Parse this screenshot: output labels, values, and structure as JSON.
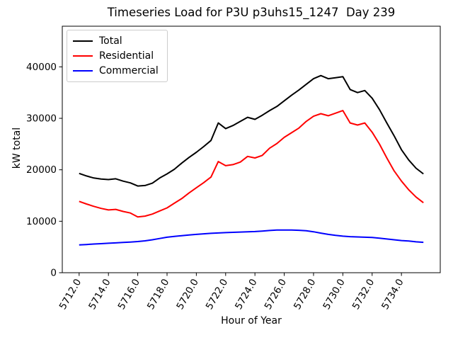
{
  "chart_data": {
    "type": "line",
    "title": "Timeseries Load for P3U p3uhs15_1247  Day 239",
    "xlabel": "Hour of Year",
    "ylabel": "kW total",
    "grid": false,
    "legend": {
      "position": "upper left"
    },
    "xlim": [
      5710.85,
      5736.65
    ],
    "ylim": [
      0,
      47900
    ],
    "xticks": {
      "values": [
        5712,
        5714,
        5716,
        5718,
        5720,
        5722,
        5724,
        5726,
        5728,
        5730,
        5732,
        5734
      ],
      "labels": [
        "5712.0",
        "5714.0",
        "5716.0",
        "5718.0",
        "5720.0",
        "5722.0",
        "5724.0",
        "5726.0",
        "5728.0",
        "5730.0",
        "5732.0",
        "5734.0"
      ],
      "rotation_deg": 60
    },
    "yticks": {
      "values": [
        0,
        10000,
        20000,
        30000,
        40000
      ],
      "labels": [
        "0",
        "10000",
        "20000",
        "30000",
        "40000"
      ]
    },
    "x": [
      5712.0,
      5712.5,
      5713.0,
      5713.5,
      5714.0,
      5714.5,
      5715.0,
      5715.5,
      5716.0,
      5716.5,
      5717.0,
      5717.5,
      5718.0,
      5718.5,
      5719.0,
      5719.5,
      5720.0,
      5720.5,
      5721.0,
      5721.5,
      5722.0,
      5722.5,
      5723.0,
      5723.5,
      5724.0,
      5724.5,
      5725.0,
      5725.5,
      5726.0,
      5726.5,
      5727.0,
      5727.5,
      5728.0,
      5728.5,
      5729.0,
      5729.5,
      5730.0,
      5730.5,
      5731.0,
      5731.5,
      5732.0,
      5732.5,
      5733.0,
      5733.5,
      5734.0,
      5734.5,
      5735.0,
      5735.5
    ],
    "series": [
      {
        "name": "Total",
        "color": "#000000",
        "values": [
          19300,
          18800,
          18400,
          18200,
          18100,
          18250,
          17800,
          17450,
          16850,
          16950,
          17400,
          18400,
          19200,
          20100,
          21300,
          22400,
          23400,
          24500,
          25700,
          29100,
          28000,
          28600,
          29400,
          30200,
          29800,
          30600,
          31500,
          32300,
          33400,
          34500,
          35500,
          36600,
          37700,
          38300,
          37700,
          37900,
          38100,
          35600,
          35000,
          35400,
          33900,
          31700,
          29100,
          26600,
          23900,
          21900,
          20300,
          19200
        ]
      },
      {
        "name": "Residential",
        "color": "#ff0000",
        "values": [
          13860,
          13350,
          12900,
          12500,
          12200,
          12300,
          11900,
          11600,
          10850,
          11000,
          11400,
          12000,
          12600,
          13500,
          14400,
          15500,
          16500,
          17500,
          18600,
          21600,
          20800,
          21000,
          21500,
          22600,
          22300,
          22800,
          24200,
          25100,
          26300,
          27200,
          28100,
          29400,
          30400,
          30900,
          30500,
          31000,
          31500,
          29100,
          28700,
          29100,
          27300,
          25000,
          22300,
          19800,
          17800,
          16100,
          14700,
          13600
        ]
      },
      {
        "name": "Commercial",
        "color": "#0000ff",
        "values": [
          5400,
          5480,
          5570,
          5650,
          5730,
          5800,
          5880,
          5960,
          6050,
          6200,
          6400,
          6650,
          6900,
          7050,
          7200,
          7330,
          7450,
          7550,
          7650,
          7720,
          7790,
          7850,
          7900,
          7950,
          8000,
          8100,
          8200,
          8280,
          8300,
          8280,
          8250,
          8150,
          7950,
          7700,
          7450,
          7250,
          7100,
          7000,
          6950,
          6900,
          6850,
          6700,
          6550,
          6400,
          6250,
          6150,
          6000,
          5900
        ]
      }
    ]
  }
}
